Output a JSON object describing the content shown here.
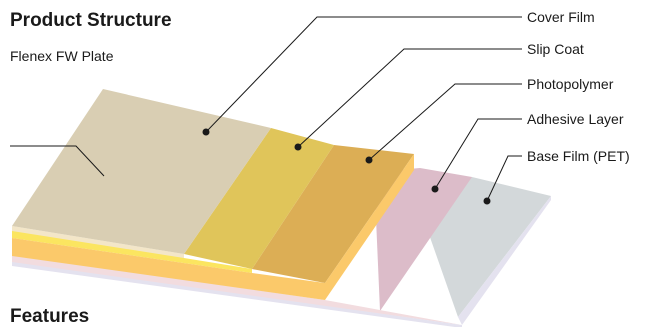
{
  "title": "Product Structure",
  "section_heading": "Features",
  "plate_label": "Flenex FW Plate",
  "layers": [
    {
      "name": "Cover Film",
      "color": "#d9ceb3"
    },
    {
      "name": "Slip Coat",
      "color": "#e0c55a"
    },
    {
      "name": "Photopolymer",
      "color": "#dcae55"
    },
    {
      "name": "Adhesive Layer",
      "color": "#dcbcc9"
    },
    {
      "name": "Base Film (PET)",
      "color": "#d3d8da"
    }
  ],
  "edge_colors": {
    "cream": "#f3e6c8",
    "yellow": "#fbe560",
    "orange": "#fbc96a",
    "pink": "#f2dcdf",
    "lavender": "#e4e2ef"
  }
}
